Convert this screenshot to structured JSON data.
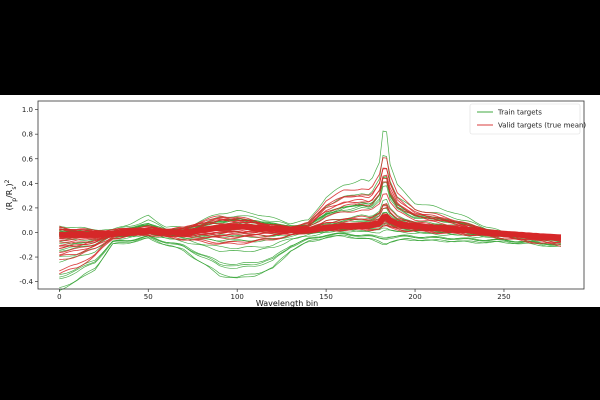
{
  "chart_data": {
    "type": "line",
    "xlabel": "Wavelength bin",
    "ylabel": "(R_p/R_s)^2",
    "xlim": [
      -12,
      295
    ],
    "ylim": [
      -0.46,
      1.07
    ],
    "xticks": [
      0,
      50,
      100,
      150,
      200,
      250
    ],
    "yticks": [
      -0.4,
      -0.2,
      0.0,
      0.2,
      0.4,
      0.6,
      0.8,
      1.0
    ],
    "ytick_labels": [
      "-0.4",
      "-0.2",
      "0.0",
      "0.2",
      "0.4",
      "0.6",
      "0.8",
      "1.0"
    ],
    "legend_position": "top-right",
    "grid": false,
    "series": [
      {
        "name": "Train targets",
        "color": "#2ca02c",
        "samples": 40,
        "x": [
          0,
          10,
          20,
          30,
          40,
          50,
          60,
          70,
          80,
          90,
          100,
          110,
          120,
          130,
          140,
          150,
          160,
          170,
          175,
          180,
          183,
          186,
          190,
          195,
          200,
          210,
          220,
          230,
          240,
          250,
          260,
          270,
          282
        ],
        "envelope_low": [
          -0.47,
          -0.4,
          -0.3,
          -0.1,
          -0.08,
          -0.05,
          -0.1,
          -0.15,
          -0.25,
          -0.35,
          -0.38,
          -0.35,
          -0.3,
          -0.15,
          -0.08,
          -0.04,
          -0.03,
          -0.05,
          -0.06,
          -0.08,
          -0.1,
          -0.08,
          -0.07,
          -0.06,
          -0.06,
          -0.07,
          -0.07,
          -0.08,
          -0.08,
          -0.08,
          -0.09,
          -0.1,
          -0.12
        ],
        "mean": [
          -0.02,
          -0.02,
          -0.02,
          -0.01,
          0.0,
          0.01,
          0.0,
          0.0,
          0.02,
          0.04,
          0.05,
          0.04,
          0.03,
          0.02,
          0.02,
          0.04,
          0.05,
          0.06,
          0.06,
          0.08,
          0.14,
          0.1,
          0.07,
          0.06,
          0.05,
          0.04,
          0.03,
          0.02,
          0.0,
          -0.01,
          -0.02,
          -0.03,
          -0.04
        ],
        "envelope_high": [
          0.06,
          0.04,
          0.03,
          0.02,
          0.08,
          0.14,
          0.05,
          0.04,
          0.1,
          0.16,
          0.18,
          0.16,
          0.12,
          0.08,
          0.1,
          0.3,
          0.4,
          0.45,
          0.42,
          0.6,
          1.0,
          0.58,
          0.4,
          0.32,
          0.25,
          0.22,
          0.18,
          0.12,
          0.05,
          0.0,
          -0.02,
          -0.03,
          -0.04
        ]
      },
      {
        "name": "Valid targets (true mean)",
        "color": "#d62728",
        "samples": 30,
        "x": [
          0,
          10,
          20,
          30,
          40,
          50,
          60,
          70,
          80,
          90,
          100,
          110,
          120,
          130,
          140,
          150,
          160,
          170,
          175,
          180,
          183,
          186,
          190,
          195,
          200,
          210,
          220,
          230,
          240,
          250,
          260,
          270,
          282
        ],
        "envelope_low": [
          -0.35,
          -0.3,
          -0.2,
          -0.05,
          -0.03,
          -0.02,
          -0.04,
          -0.06,
          -0.08,
          -0.1,
          -0.1,
          -0.08,
          -0.06,
          -0.03,
          0.0,
          0.01,
          0.02,
          0.02,
          0.02,
          0.03,
          0.05,
          0.03,
          0.02,
          0.01,
          0.01,
          0.0,
          -0.01,
          -0.02,
          -0.03,
          -0.05,
          -0.07,
          -0.09,
          -0.11
        ],
        "mean": [
          -0.02,
          -0.02,
          -0.02,
          -0.01,
          0.0,
          0.01,
          0.0,
          0.0,
          0.02,
          0.04,
          0.05,
          0.04,
          0.03,
          0.02,
          0.02,
          0.04,
          0.05,
          0.06,
          0.06,
          0.08,
          0.14,
          0.1,
          0.07,
          0.06,
          0.05,
          0.04,
          0.03,
          0.02,
          0.0,
          -0.01,
          -0.02,
          -0.03,
          -0.04
        ],
        "envelope_high": [
          0.05,
          0.03,
          0.02,
          0.02,
          0.04,
          0.05,
          0.03,
          0.04,
          0.1,
          0.14,
          0.13,
          0.1,
          0.06,
          0.05,
          0.08,
          0.28,
          0.36,
          0.38,
          0.36,
          0.5,
          0.72,
          0.5,
          0.34,
          0.26,
          0.2,
          0.16,
          0.12,
          0.07,
          0.03,
          0.0,
          -0.02,
          -0.03,
          -0.04
        ]
      }
    ]
  },
  "legend": {
    "train_label": "Train targets",
    "valid_label": "Valid targets (true mean)"
  }
}
